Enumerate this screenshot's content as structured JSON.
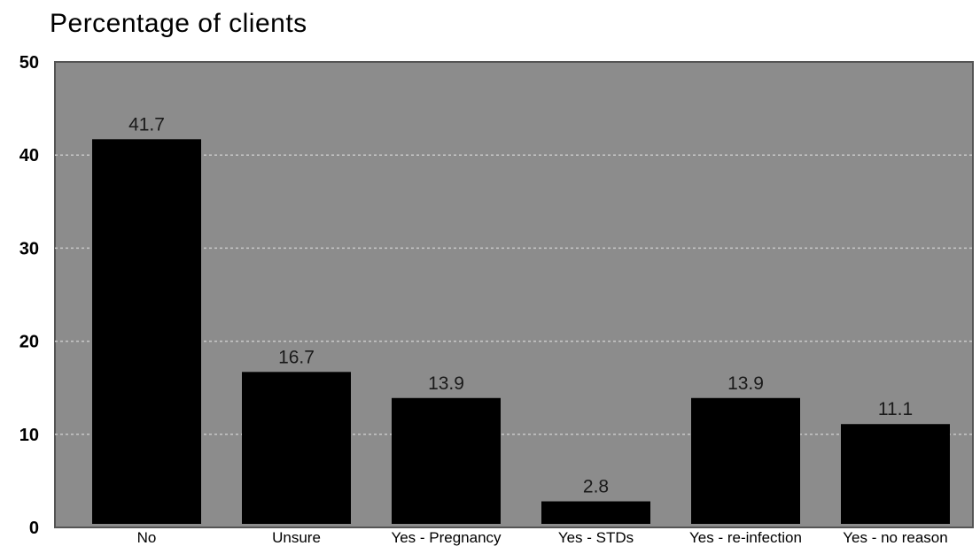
{
  "chart_data": {
    "type": "bar",
    "title": "Percentage of clients",
    "categories": [
      "No",
      "Unsure",
      "Yes - Pregnancy",
      "Yes - STDs",
      "Yes - re-infection",
      "Yes - no reason"
    ],
    "values": [
      41.7,
      16.7,
      13.9,
      2.8,
      13.9,
      11.1
    ],
    "data_labels": [
      "41.7",
      "16.7",
      "13.9",
      "2.8",
      "13.9",
      "11.1"
    ],
    "ylim": [
      0,
      50
    ],
    "yticks": [
      "0",
      "10",
      "20",
      "30",
      "40",
      "50"
    ],
    "grid": true,
    "bar_color": "#000000",
    "background_color": "#8c8c8c"
  }
}
